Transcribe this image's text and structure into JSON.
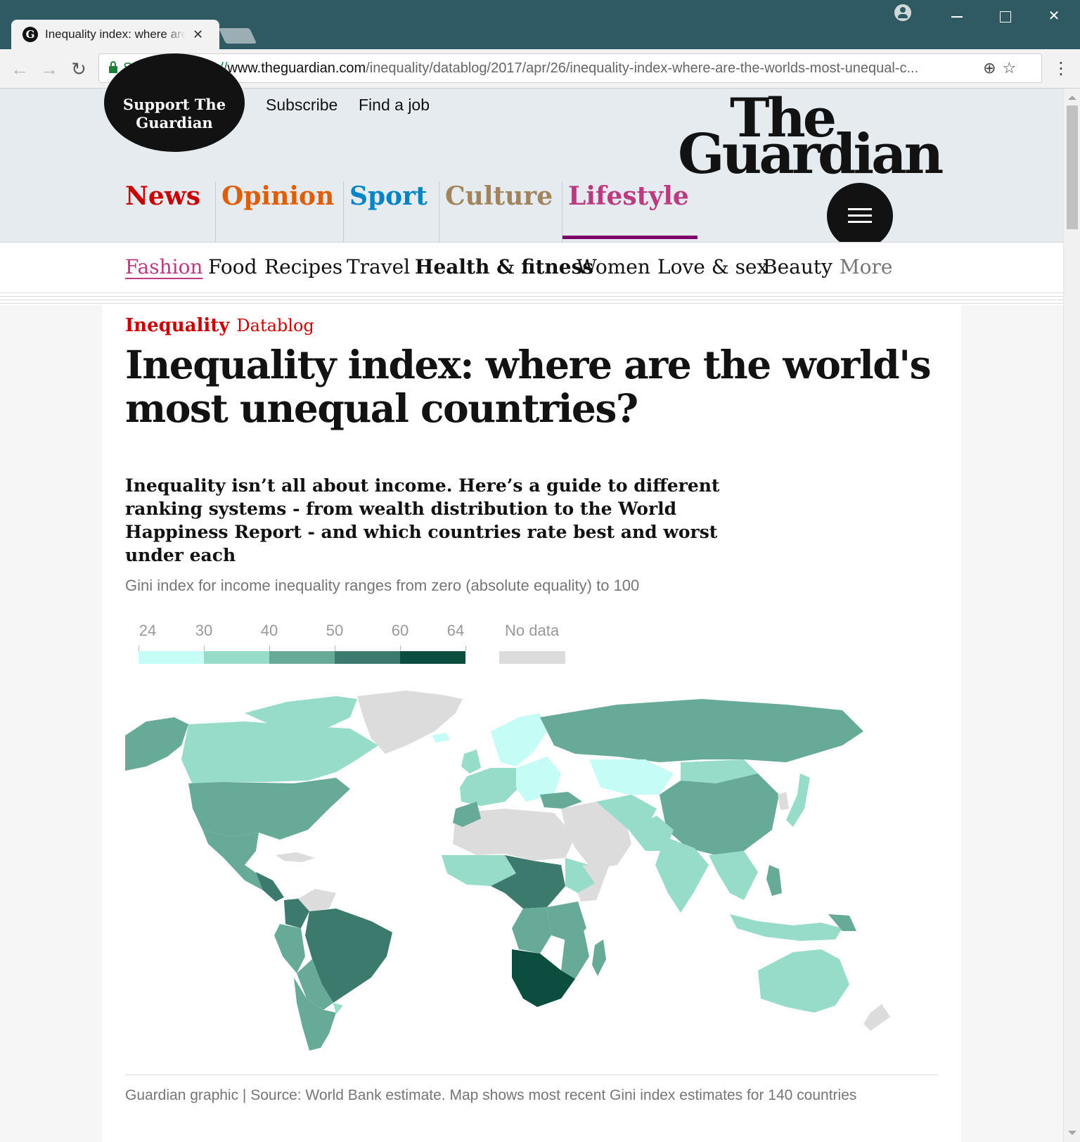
{
  "browser": {
    "tab_title": "Inequality index: where are the world's most unequal countries?",
    "tab_favicon": "G",
    "secure_label": "Secure",
    "url_scheme": "https://",
    "url_host": "www.theguardian.com",
    "url_path": "/inequality/datablog/2017/apr/26/inequality-index-where-are-the-worlds-most-unequal-c...",
    "icons": {
      "back": "arrow-left-icon",
      "forward": "arrow-right-icon",
      "reload": "reload-icon",
      "zoom": "zoom-icon",
      "bookmark": "star-icon",
      "menu": "kebab-menu-icon"
    }
  },
  "header": {
    "support_line1": "Support The",
    "support_line2": "Guardian",
    "subscribe": "Subscribe",
    "find_job": "Find a job",
    "logo_line1": "The",
    "logo_line2": "Guardian",
    "pillars": [
      {
        "label": "News",
        "color": "#c70000"
      },
      {
        "label": "Opinion",
        "color": "#e05e00"
      },
      {
        "label": "Sport",
        "color": "#0084c6"
      },
      {
        "label": "Culture",
        "color": "#a1845c"
      },
      {
        "label": "Lifestyle",
        "color": "#bb3b80"
      }
    ],
    "subnav": [
      "Fashion",
      "Food",
      "Recipes",
      "Travel",
      "Health & fitness",
      "Women",
      "Love & sex",
      "Beauty",
      "More"
    ]
  },
  "article": {
    "kicker_section": "Inequality",
    "kicker_series": "Datablog",
    "headline": "Inequality index: where are the world's most unequal countries?",
    "standfirst": "Inequality isn’t all about income. Here’s a guide to different ranking systems - from wealth distribution to the World Happiness Report - and which countries rate best and worst under each"
  },
  "chart_data": {
    "type": "choropleth map",
    "title": "",
    "subtitle": "Gini index for income inequality ranges from zero (absolute equality) to 100",
    "legend_ticks": [
      "24",
      "30",
      "40",
      "50",
      "60",
      "64"
    ],
    "legend_bins": [
      {
        "from": 24,
        "to": 30,
        "color": "#c6fcf6"
      },
      {
        "from": 30,
        "to": 40,
        "color": "#96dcc8"
      },
      {
        "from": 40,
        "to": 50,
        "color": "#68aa98"
      },
      {
        "from": 50,
        "to": 60,
        "color": "#3b7a6c"
      },
      {
        "from": 60,
        "to": 64,
        "color": "#0b4e40"
      }
    ],
    "no_data_label": "No data",
    "no_data_color": "#dcdcdc",
    "source": "Guardian graphic | Source: World Bank estimate. Map shows most recent Gini index estimates for 140 countries"
  }
}
